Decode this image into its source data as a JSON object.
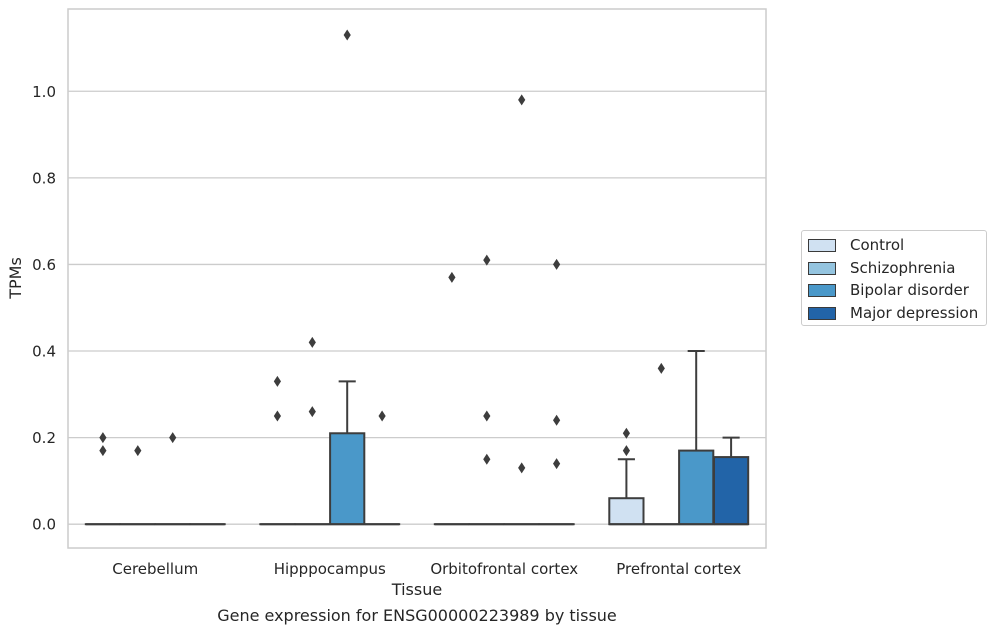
{
  "caption": "Gene expression for ENSG00000223989 by tissue",
  "chart_data": {
    "type": "box",
    "xlabel": "Tissue",
    "ylabel": "TPMs",
    "categories": [
      "Cerebellum",
      "Hipppocampus",
      "Orbitofrontal cortex",
      "Prefrontal cortex"
    ],
    "ylim": [
      -0.055,
      1.19
    ],
    "yticks": [
      0.0,
      0.2,
      0.4,
      0.6,
      0.8,
      1.0
    ],
    "ytick_labels": [
      "0.0",
      "0.2",
      "0.4",
      "0.6",
      "0.8",
      "1.0"
    ],
    "grid": "horizontal",
    "legend_position": "right",
    "series": [
      {
        "name": "Control",
        "color": "#d0e1f2",
        "boxes": [
          {
            "q1": 0,
            "median": 0,
            "q3": 0,
            "whisker_low": 0,
            "whisker_high": 0,
            "outliers": [
              0.2,
              0.17
            ]
          },
          {
            "q1": 0,
            "median": 0,
            "q3": 0,
            "whisker_low": 0,
            "whisker_high": 0,
            "outliers": [
              0.33,
              0.25
            ]
          },
          {
            "q1": 0,
            "median": 0,
            "q3": 0,
            "whisker_low": 0,
            "whisker_high": 0,
            "outliers": [
              0.57
            ]
          },
          {
            "q1": 0,
            "median": 0,
            "q3": 0.06,
            "whisker_low": 0,
            "whisker_high": 0.15,
            "outliers": [
              0.21,
              0.17
            ]
          }
        ]
      },
      {
        "name": "Schizophrenia",
        "color": "#94c4df",
        "boxes": [
          {
            "q1": 0,
            "median": 0,
            "q3": 0,
            "whisker_low": 0,
            "whisker_high": 0,
            "outliers": [
              0.17
            ]
          },
          {
            "q1": 0,
            "median": 0,
            "q3": 0,
            "whisker_low": 0,
            "whisker_high": 0,
            "outliers": [
              0.42,
              0.26
            ]
          },
          {
            "q1": 0,
            "median": 0,
            "q3": 0,
            "whisker_low": 0,
            "whisker_high": 0,
            "outliers": [
              0.61,
              0.25,
              0.15
            ]
          },
          {
            "q1": 0,
            "median": 0,
            "q3": 0,
            "whisker_low": 0,
            "whisker_high": 0,
            "outliers": [
              0.36
            ]
          }
        ]
      },
      {
        "name": "Bipolar disorder",
        "color": "#4a98c9",
        "boxes": [
          {
            "q1": 0,
            "median": 0,
            "q3": 0,
            "whisker_low": 0,
            "whisker_high": 0,
            "outliers": [
              0.2
            ]
          },
          {
            "q1": 0,
            "median": 0,
            "q3": 0.21,
            "whisker_low": 0,
            "whisker_high": 0.33,
            "outliers": [
              1.13
            ]
          },
          {
            "q1": 0,
            "median": 0,
            "q3": 0,
            "whisker_low": 0,
            "whisker_high": 0,
            "outliers": [
              0.98,
              0.13
            ]
          },
          {
            "q1": 0,
            "median": 0,
            "q3": 0.17,
            "whisker_low": 0,
            "whisker_high": 0.4,
            "outliers": []
          }
        ]
      },
      {
        "name": "Major depression",
        "color": "#2264a8",
        "boxes": [
          {
            "q1": 0,
            "median": 0,
            "q3": 0,
            "whisker_low": 0,
            "whisker_high": 0,
            "outliers": []
          },
          {
            "q1": 0,
            "median": 0,
            "q3": 0,
            "whisker_low": 0,
            "whisker_high": 0,
            "outliers": [
              0.25
            ]
          },
          {
            "q1": 0,
            "median": 0,
            "q3": 0,
            "whisker_low": 0,
            "whisker_high": 0,
            "outliers": [
              0.6,
              0.24,
              0.14
            ]
          },
          {
            "q1": 0,
            "median": 0,
            "q3": 0.155,
            "whisker_low": 0,
            "whisker_high": 0.2,
            "outliers": []
          }
        ]
      }
    ]
  }
}
